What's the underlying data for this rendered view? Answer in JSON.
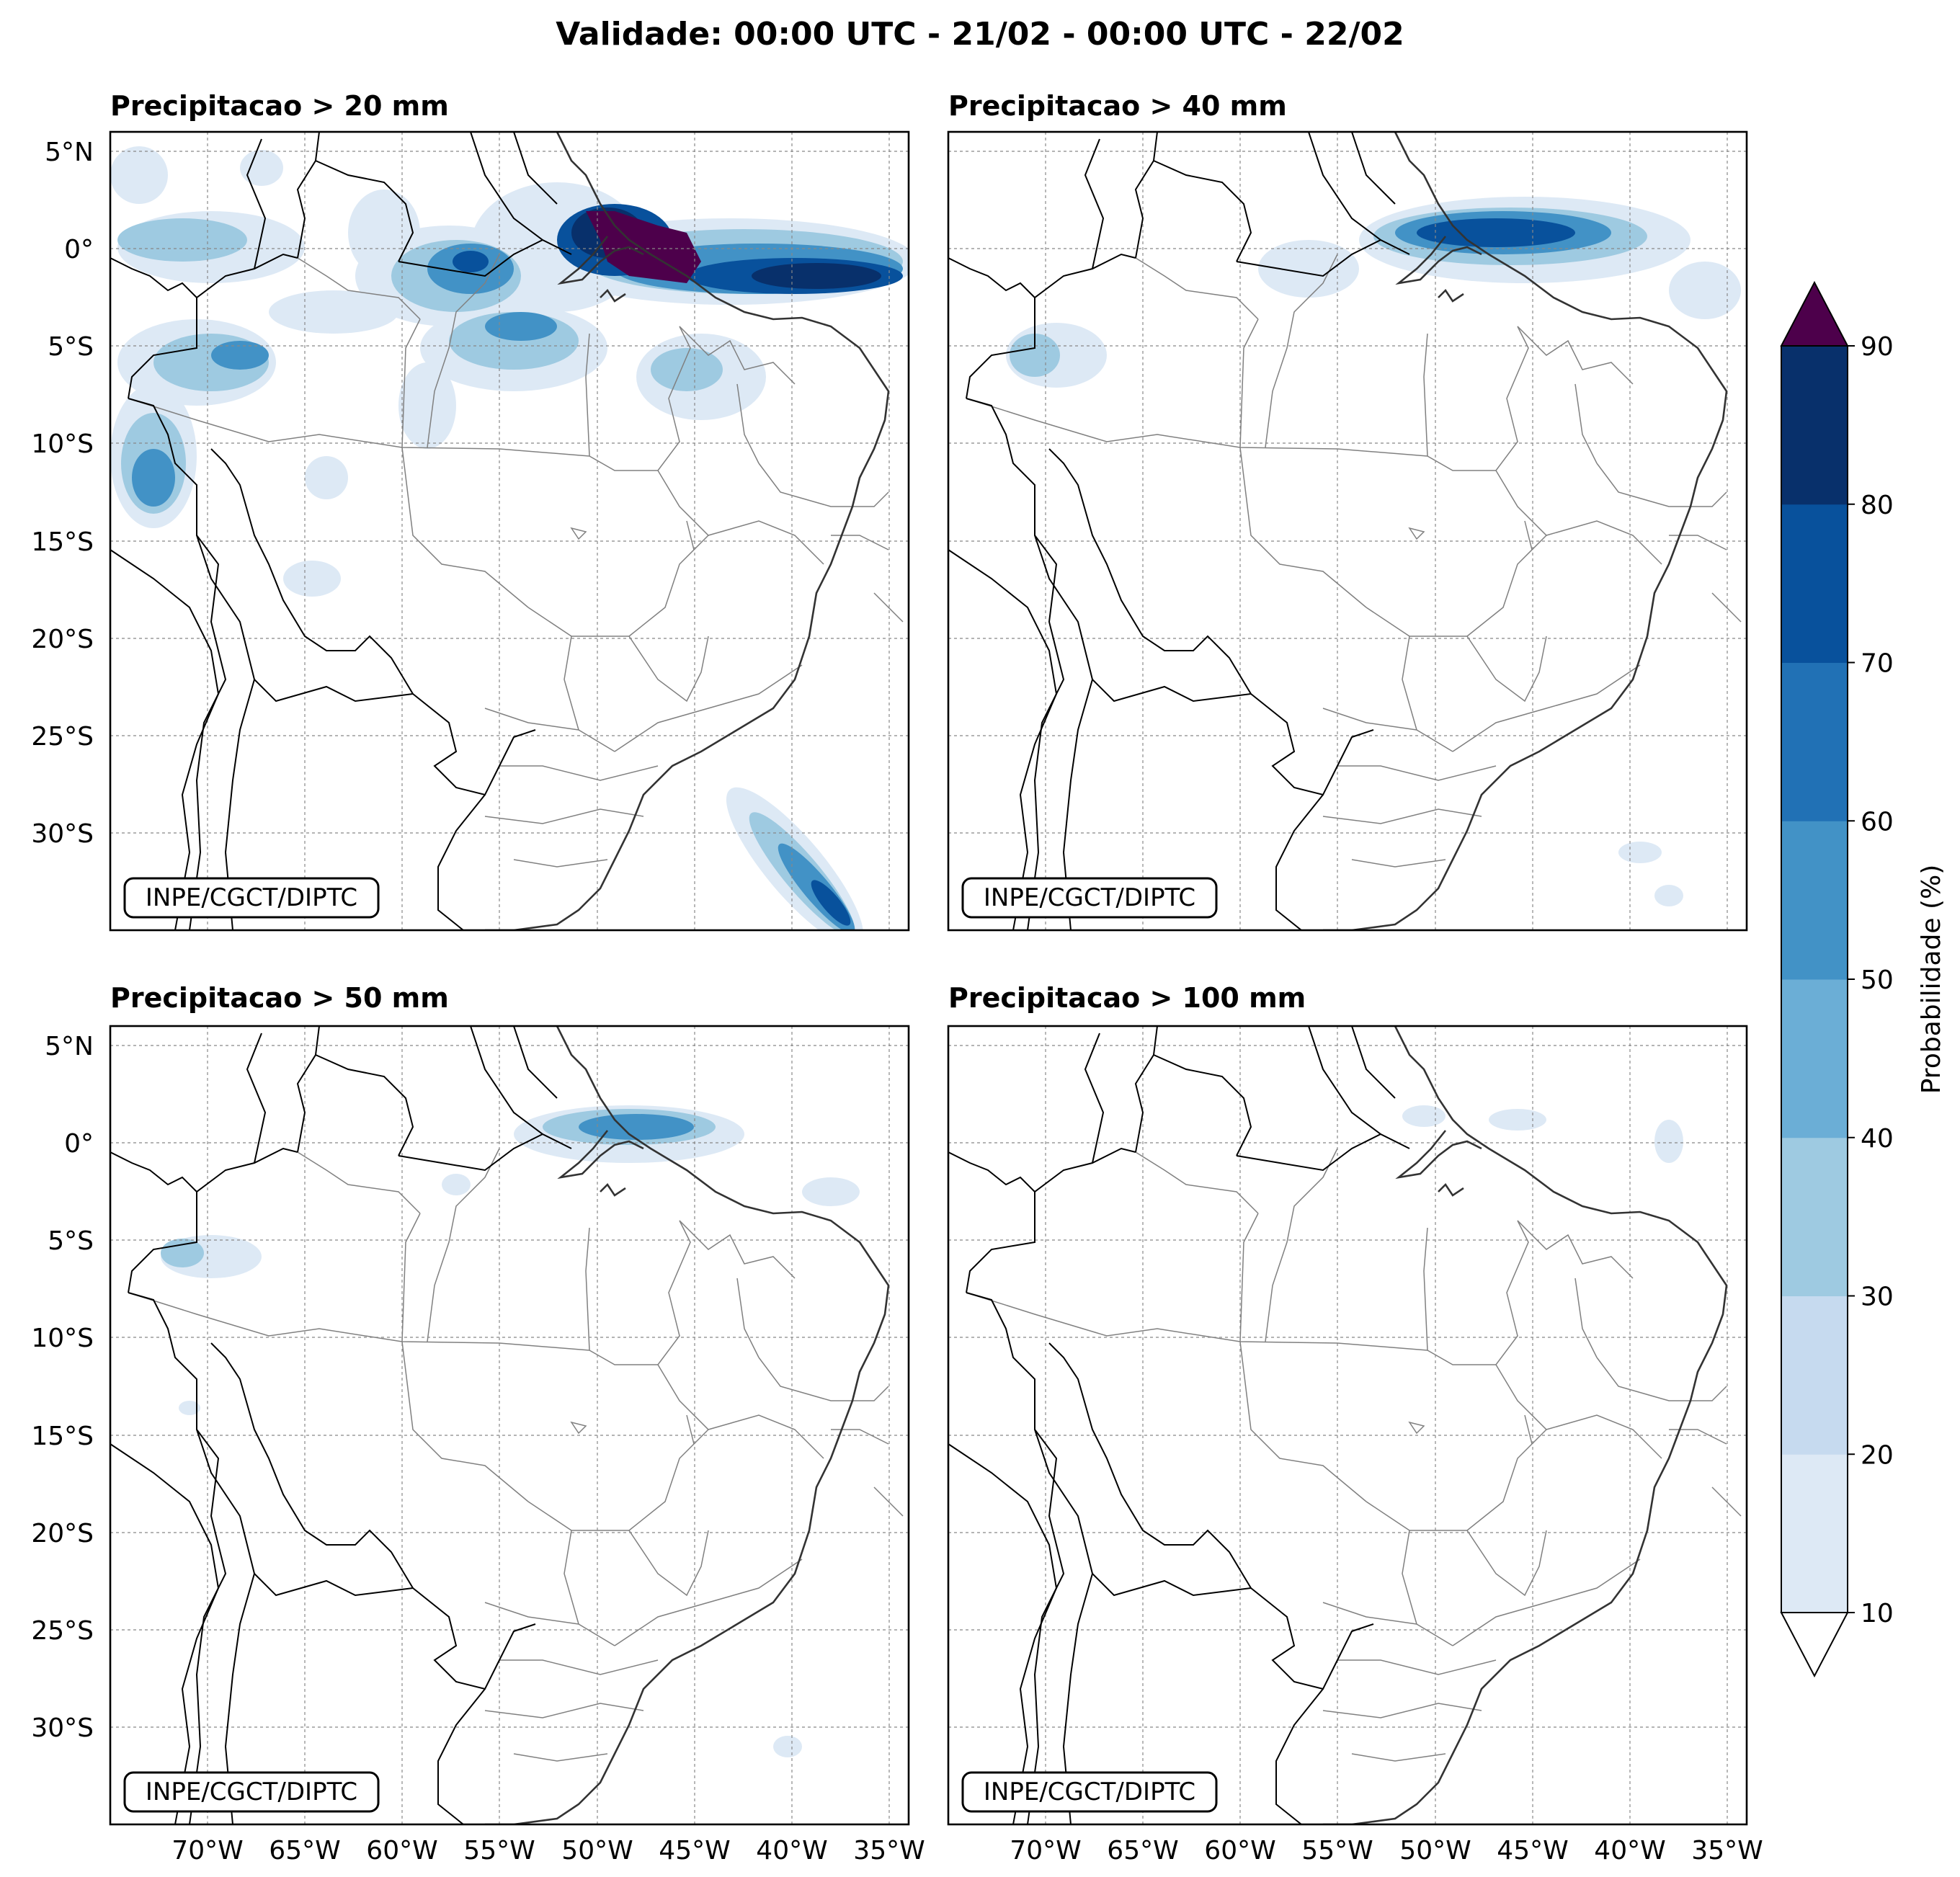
{
  "title": "Validade: 00:00 UTC - 21/02 - 00:00 UTC - 22/02",
  "lon_ticks": [
    "70°W",
    "65°W",
    "60°W",
    "55°W",
    "50°W",
    "45°W",
    "40°W",
    "35°W"
  ],
  "lat_ticks": [
    "5°N",
    "0°",
    "5°S",
    "10°S",
    "15°S",
    "20°S",
    "25°S",
    "30°S"
  ],
  "map_extent": {
    "lon": [
      -75.0,
      -34.0
    ],
    "lat": [
      -35.0,
      6.0
    ]
  },
  "credit": "INPE/CGCT/DIPTC",
  "panels": [
    {
      "title": "Precipitacao > 20 mm"
    },
    {
      "title": "Precipitacao > 40 mm"
    },
    {
      "title": "Precipitacao > 50 mm"
    },
    {
      "title": "Precipitacao > 100 mm"
    }
  ],
  "colorbar": {
    "label": "Probabilidade (%)",
    "ticks": [
      "10",
      "20",
      "30",
      "40",
      "50",
      "60",
      "70",
      "80",
      "90"
    ],
    "colors": [
      "#dde9f5",
      "#c6daef",
      "#9ecae1",
      "#6baed6",
      "#4292c6",
      "#2171b5",
      "#08519c",
      "#08306b"
    ],
    "over_color": "#4d004b",
    "under_color": "#ffffff"
  }
}
